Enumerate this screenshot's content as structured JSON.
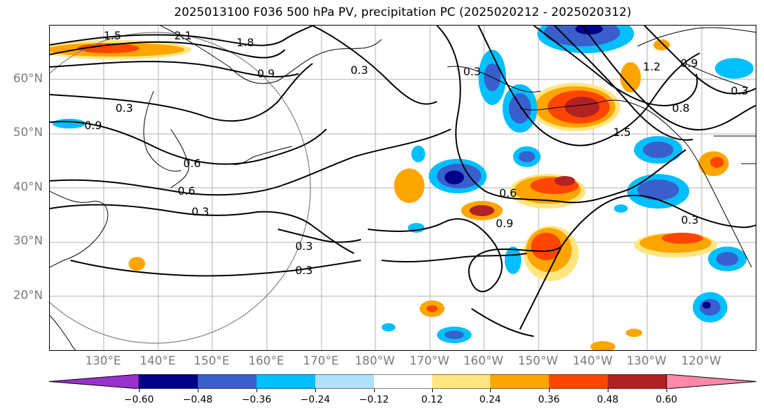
{
  "title": "2025013100 F036 500 hPa PV, precipitation PC (2025020212 - 2025020312)",
  "axes": {
    "lat_labels": [
      "60°N",
      "50°N",
      "40°N",
      "30°N",
      "20°N"
    ],
    "lon_labels": [
      "130°E",
      "140°E",
      "150°E",
      "160°E",
      "170°E",
      "180°W",
      "170°W",
      "160°W",
      "150°W",
      "140°W",
      "130°W",
      "120°W"
    ]
  },
  "contour_labels": [
    "1.5",
    "2.1",
    "1.8",
    "0.9",
    "0.3",
    "0.3",
    "0.9",
    "0.6",
    "0.6",
    "0.3",
    "0.3",
    "0.3",
    "0.6",
    "0.9",
    "0.3",
    "1.2",
    "0.9",
    "0.3",
    "0.8",
    "1.5",
    "0.3"
  ],
  "colorbar": {
    "ticks": [
      "−0.60",
      "−0.48",
      "−0.36",
      "−0.24",
      "−0.12",
      "0.12",
      "0.24",
      "0.36",
      "0.48",
      "0.60"
    ],
    "colors": [
      "#9932cc",
      "#00008b",
      "#3a5fcd",
      "#00bfff",
      "#b0e2ff",
      "#ffffff",
      "#ffe680",
      "#ffa500",
      "#ff4500",
      "#b22222",
      "#ff88aa"
    ]
  },
  "fill_colors": {
    "neg_strong": "#00008b",
    "neg_mid": "#3a5fcd",
    "neg_light": "#00bfff",
    "pos_light": "#ffe680",
    "pos_mid": "#ffa500",
    "pos_strong": "#ff4500",
    "pos_max": "#b22222"
  }
}
